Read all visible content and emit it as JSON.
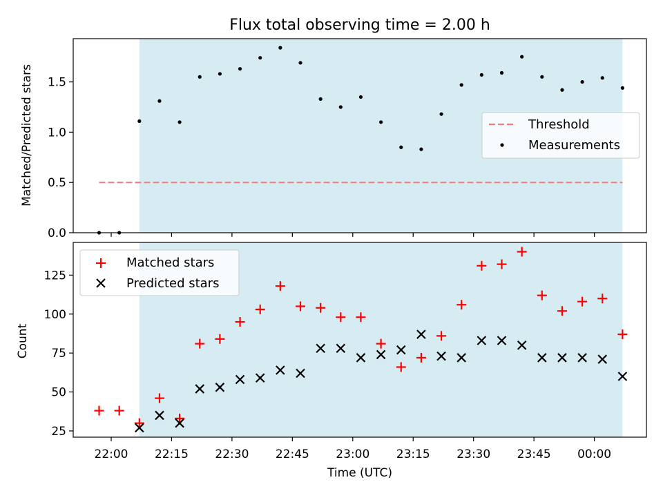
{
  "chart_data": [
    {
      "type": "scatter",
      "title": "Flux total observing time = 2.00 h",
      "xlabel": "",
      "ylabel": "Matched/Predicted stars",
      "ylim": [
        0,
        1.93
      ],
      "yticks": [
        "0.0",
        "0.5",
        "1.0",
        "1.5"
      ],
      "legend_position": "center-right",
      "shaded_span": {
        "start": "22:07",
        "end": "00:07",
        "color": "#add8e6"
      },
      "threshold": {
        "name": "Threshold",
        "value": 0.5,
        "x_start": "21:57",
        "x_end": "00:07",
        "color": "#f08080"
      },
      "measurements": {
        "name": "Measurements",
        "color": "#000000",
        "x": [
          "21:57",
          "22:02",
          "22:07",
          "22:12",
          "22:17",
          "22:22",
          "22:27",
          "22:32",
          "22:37",
          "22:42",
          "22:47",
          "22:52",
          "22:57",
          "23:02",
          "23:07",
          "23:12",
          "23:17",
          "23:22",
          "23:27",
          "23:32",
          "23:37",
          "23:42",
          "23:47",
          "23:52",
          "23:57",
          "00:02",
          "00:07"
        ],
        "y": [
          0.0,
          0.0,
          1.11,
          1.31,
          1.1,
          1.55,
          1.58,
          1.63,
          1.74,
          1.84,
          1.69,
          1.33,
          1.25,
          1.35,
          1.1,
          0.85,
          0.83,
          1.18,
          1.47,
          1.57,
          1.59,
          1.75,
          1.55,
          1.42,
          1.5,
          1.54,
          1.44
        ]
      }
    },
    {
      "type": "scatter",
      "xlabel": "Time (UTC)",
      "ylabel": "Count",
      "ylim": [
        21,
        146
      ],
      "yticks": [
        "25",
        "50",
        "75",
        "100",
        "125"
      ],
      "xticks": [
        "22:00",
        "22:15",
        "22:30",
        "22:45",
        "23:00",
        "23:15",
        "23:30",
        "23:45",
        "00:00"
      ],
      "legend_position": "top-left",
      "shaded_span": {
        "start": "22:07",
        "end": "00:07",
        "color": "#add8e6"
      },
      "x": [
        "21:57",
        "22:02",
        "22:07",
        "22:12",
        "22:17",
        "22:22",
        "22:27",
        "22:32",
        "22:37",
        "22:42",
        "22:47",
        "22:52",
        "22:57",
        "23:02",
        "23:07",
        "23:12",
        "23:17",
        "23:22",
        "23:27",
        "23:32",
        "23:37",
        "23:42",
        "23:47",
        "23:52",
        "23:57",
        "00:02",
        "00:07"
      ],
      "series": [
        {
          "name": "Matched stars",
          "marker": "+",
          "color": "#ff0000",
          "values": [
            38,
            38,
            30,
            46,
            33,
            81,
            84,
            95,
            103,
            118,
            105,
            104,
            98,
            98,
            81,
            66,
            72,
            86,
            106,
            131,
            132,
            140,
            112,
            102,
            108,
            110,
            87
          ]
        },
        {
          "name": "Predicted stars",
          "marker": "x",
          "color": "#000000",
          "values": [
            null,
            null,
            27,
            35,
            30,
            52,
            53,
            58,
            59,
            64,
            62,
            78,
            78,
            72,
            74,
            77,
            87,
            73,
            72,
            83,
            83,
            80,
            72,
            72,
            72,
            71,
            60
          ]
        }
      ]
    }
  ]
}
